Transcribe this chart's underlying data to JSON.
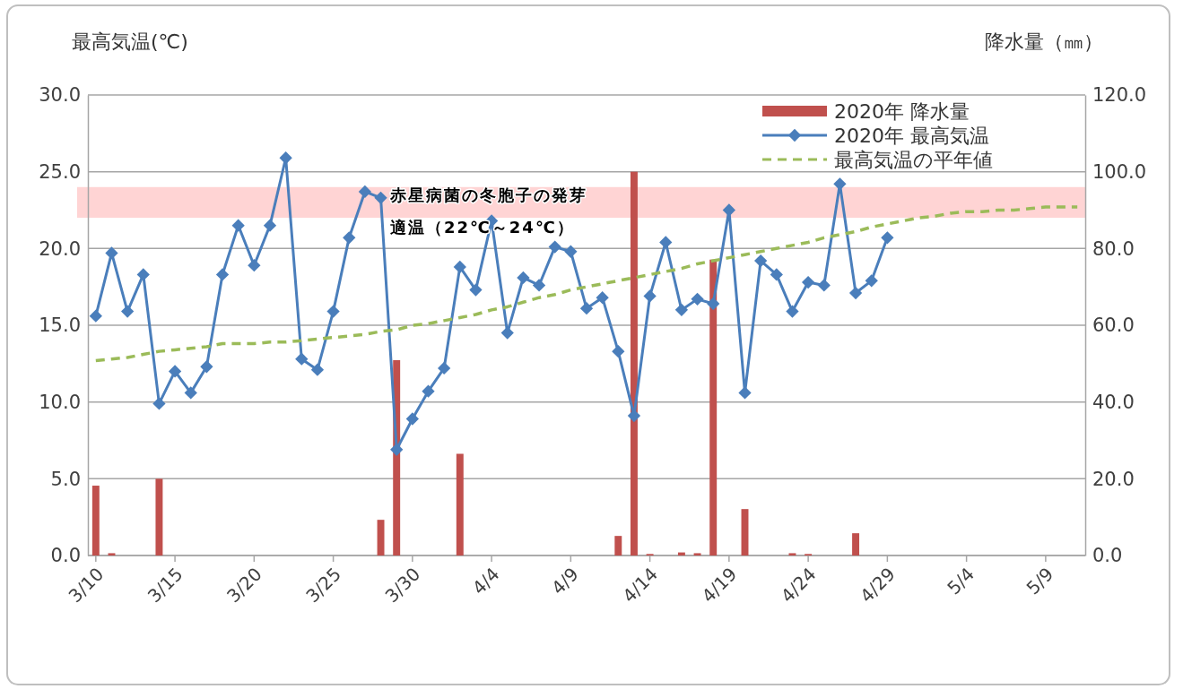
{
  "chart_data": {
    "type": "line",
    "ylabel": "最高気温(℃)",
    "y2label": "降水量（㎜）",
    "categories": [
      "3/10",
      null,
      null,
      null,
      null,
      "3/15",
      null,
      null,
      null,
      null,
      "3/20",
      null,
      null,
      null,
      null,
      "3/25",
      null,
      null,
      null,
      null,
      "3/30",
      null,
      null,
      null,
      null,
      "4/4",
      null,
      null,
      null,
      null,
      "4/9",
      null,
      null,
      null,
      null,
      "4/14",
      null,
      null,
      null,
      null,
      "4/19",
      null,
      null,
      null,
      null,
      "4/24",
      null,
      null,
      null,
      null,
      "4/29",
      null,
      null,
      null,
      null,
      "5/4",
      null,
      null,
      null,
      null,
      "5/9",
      null,
      null
    ],
    "ylim": [
      0,
      30
    ],
    "yticks": [
      {
        "value": 0,
        "label": "0.0"
      },
      {
        "value": 5,
        "label": "5.0"
      },
      {
        "value": 10,
        "label": "10.0"
      },
      {
        "value": 15,
        "label": "15.0"
      },
      {
        "value": 20,
        "label": "20.0"
      },
      {
        "value": 25,
        "label": "25.0"
      },
      {
        "value": 30,
        "label": "30.0"
      }
    ],
    "y2lim": [
      0,
      120
    ],
    "y2ticks": [
      {
        "value": 0,
        "label": "0.0"
      },
      {
        "value": 20,
        "label": "20.0"
      },
      {
        "value": 40,
        "label": "40.0"
      },
      {
        "value": 60,
        "label": "60.0"
      },
      {
        "value": 80,
        "label": "80.0"
      },
      {
        "value": 100,
        "label": "100.0"
      },
      {
        "value": 120,
        "label": "120.0"
      }
    ],
    "grid": "y",
    "legend": "top right",
    "bands": [
      {
        "axis": "y",
        "from": 22,
        "to": 24,
        "label": "赤星病菌の冬胞子の発芽適温（22℃～24℃）",
        "color": "#ffcccc"
      }
    ],
    "series": [
      {
        "name": "2020年  降水量",
        "type": "bar",
        "axis": "y2",
        "color": "#c0504d",
        "values": [
          18.2,
          0.6,
          0,
          0,
          20.0,
          0,
          0,
          0,
          0,
          0,
          0,
          0,
          0,
          0,
          0,
          0,
          0,
          0,
          9.3,
          50.9,
          0,
          0,
          0,
          26.5,
          0,
          0,
          0,
          0,
          0,
          0,
          0,
          0,
          0,
          5.1,
          100,
          0.4,
          0,
          0.8,
          0.6,
          77.1,
          0,
          12.1,
          0,
          0,
          0.6,
          0.4,
          0,
          0,
          5.8,
          0,
          0,
          null,
          null,
          null,
          null,
          null,
          null,
          null,
          null,
          null,
          null,
          null,
          null
        ]
      },
      {
        "name": "2020年  最高気温",
        "color": "#4a7ebb",
        "marker": "diamond",
        "line_style": "solid",
        "values": [
          15.6,
          19.7,
          15.9,
          18.3,
          9.9,
          12.0,
          10.6,
          12.3,
          18.3,
          21.5,
          18.9,
          21.5,
          25.9,
          12.8,
          12.1,
          15.9,
          20.7,
          23.7,
          23.3,
          6.9,
          8.9,
          10.7,
          12.2,
          18.8,
          17.3,
          21.8,
          14.5,
          18.1,
          17.6,
          20.1,
          19.8,
          16.1,
          16.8,
          13.3,
          9.1,
          16.9,
          20.4,
          16.0,
          16.7,
          16.4,
          22.5,
          10.6,
          19.2,
          18.3,
          15.9,
          17.8,
          17.6,
          24.2,
          17.1,
          17.9,
          20.7,
          null,
          null,
          null,
          null,
          null,
          null,
          null,
          null,
          null,
          null,
          null,
          null
        ]
      },
      {
        "name": "最高気温の平年値",
        "color": "#9bbb59",
        "marker": "none",
        "line_style": "dashed",
        "values": [
          12.7,
          12.8,
          12.9,
          13.1,
          13.3,
          13.4,
          13.5,
          13.6,
          13.8,
          13.8,
          13.8,
          13.9,
          13.9,
          14.0,
          14.1,
          14.2,
          14.3,
          14.4,
          14.6,
          14.7,
          15.0,
          15.1,
          15.3,
          15.5,
          15.7,
          16.0,
          16.2,
          16.5,
          16.8,
          17.0,
          17.3,
          17.5,
          17.7,
          17.9,
          18.1,
          18.3,
          18.5,
          18.7,
          19.0,
          19.2,
          19.4,
          19.6,
          19.8,
          20.0,
          20.2,
          20.4,
          20.7,
          20.9,
          21.1,
          21.4,
          21.6,
          21.8,
          22.0,
          22.1,
          22.3,
          22.4,
          22.4,
          22.5,
          22.5,
          22.6,
          22.7,
          22.7,
          22.7
        ]
      }
    ]
  }
}
